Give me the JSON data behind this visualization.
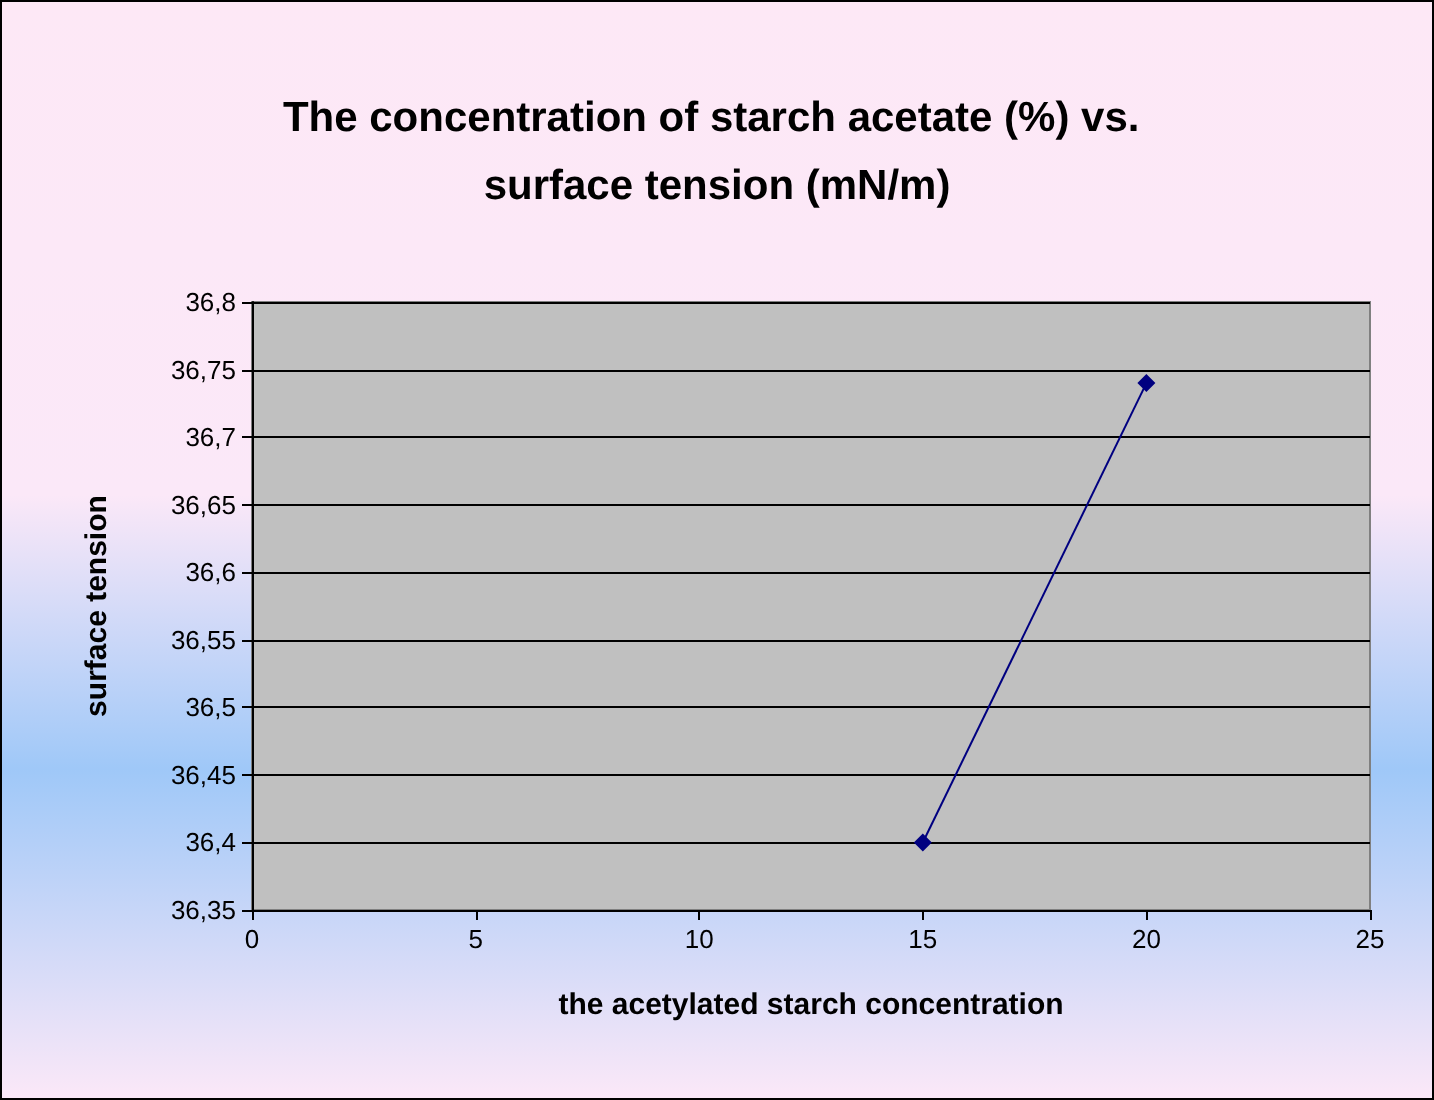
{
  "chart_data": {
    "type": "line",
    "title": "The concentration of starch acetate (%) vs. surface tension (mN/m)",
    "xlabel": "the acetylated starch concentration",
    "ylabel": "surface tension",
    "x": [
      15,
      20
    ],
    "series": [
      {
        "color": "#000080",
        "values": [
          36.4,
          36.74
        ]
      }
    ],
    "xlim": [
      0,
      25
    ],
    "xticks": [
      0,
      5,
      10,
      15,
      20,
      25
    ],
    "ylim": [
      36.35,
      36.8
    ],
    "yticks": [
      {
        "value": 36.35,
        "label": "36,35"
      },
      {
        "value": 36.4,
        "label": "36,4"
      },
      {
        "value": 36.45,
        "label": "36,45"
      },
      {
        "value": 36.5,
        "label": "36,5"
      },
      {
        "value": 36.55,
        "label": "36,55"
      },
      {
        "value": 36.6,
        "label": "36,6"
      },
      {
        "value": 36.65,
        "label": "36,65"
      },
      {
        "value": 36.7,
        "label": "36,7"
      },
      {
        "value": 36.75,
        "label": "36,75"
      },
      {
        "value": 36.8,
        "label": "36,8"
      }
    ],
    "grid": "y",
    "marker": "diamond",
    "line_style": "solid"
  }
}
